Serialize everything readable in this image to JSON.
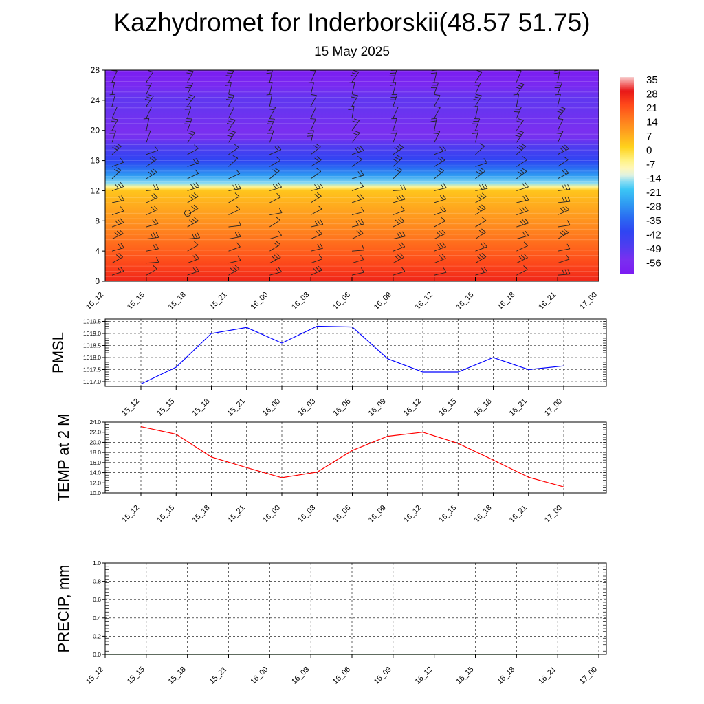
{
  "title": "Kazhydromet for Inderborskii(48.57 51.75)",
  "subtitle": "15 May 2025",
  "chart_data": [
    {
      "type": "heatmap",
      "description_of_axes": "height levels vs time",
      "xticks": [
        "15_12",
        "15_15",
        "15_18",
        "15_21",
        "16_00",
        "16_03",
        "16_06",
        "16_09",
        "16_12",
        "16_15",
        "16_18",
        "16_21",
        "17_00"
      ],
      "yticks": [
        0,
        4,
        8,
        12,
        16,
        20,
        24,
        28
      ],
      "ylim": [
        0,
        28
      ],
      "colorbar": {
        "labels": [
          "35",
          "28",
          "21",
          "14",
          "7",
          "0",
          "-7",
          "-14",
          "-21",
          "-28",
          "-35",
          "-42",
          "-49",
          "-56"
        ],
        "range": [
          -63,
          35
        ]
      },
      "temperature_profile": {
        "levels": [
          0,
          2,
          4,
          6,
          8,
          10,
          12,
          12.5,
          13,
          14,
          15,
          16,
          18,
          19,
          20,
          22,
          24,
          26,
          28
        ],
        "values": [
          26,
          22,
          18,
          14,
          10,
          6,
          2,
          -7,
          -17,
          -28,
          -35,
          -42,
          -50,
          -55,
          -56,
          -54,
          -52,
          -58,
          -63
        ]
      },
      "wind_barbs": "present at every grid point"
    },
    {
      "type": "line",
      "ylabel": "PMSL",
      "categories": [
        "15_12",
        "15_15",
        "15_18",
        "15_21",
        "16_00",
        "16_03",
        "16_06",
        "16_09",
        "16_12",
        "16_15",
        "16_18",
        "16_21",
        "17_00"
      ],
      "values": [
        1016.9,
        1017.6,
        1019.0,
        1019.25,
        1018.6,
        1019.3,
        1019.27,
        1017.95,
        1017.4,
        1017.4,
        1018.0,
        1017.5,
        1017.65
      ],
      "yticks": [
        "1017.0",
        "1017.5",
        "1018.0",
        "1018.5",
        "1019.0",
        "1019.5"
      ],
      "ylim": [
        1016.8,
        1019.6
      ],
      "color": "#0000ff",
      "grid": true
    },
    {
      "type": "line",
      "ylabel": "TEMP at 2 M",
      "categories": [
        "15_12",
        "15_15",
        "15_18",
        "15_21",
        "16_00",
        "16_03",
        "16_06",
        "16_09",
        "16_12",
        "16_15",
        "16_18",
        "16_21",
        "17_00"
      ],
      "values": [
        23.1,
        21.6,
        17.1,
        15.0,
        13.0,
        14.1,
        18.4,
        21.2,
        22.0,
        19.8,
        16.5,
        13.1,
        11.2
      ],
      "yticks": [
        "10.0",
        "12.0",
        "14.0",
        "16.0",
        "18.0",
        "20.0",
        "22.0",
        "24.0"
      ],
      "ylim": [
        10,
        24
      ],
      "color": "#ff0000",
      "grid": true
    },
    {
      "type": "line",
      "ylabel": "PRECIP, mm",
      "categories": [
        "15_12",
        "15_15",
        "15_18",
        "15_21",
        "16_00",
        "16_03",
        "16_06",
        "16_09",
        "16_12",
        "16_15",
        "16_18",
        "16_21",
        "17_00"
      ],
      "values": [
        0,
        0,
        0,
        0,
        0,
        0,
        0,
        0,
        0,
        0,
        0,
        0,
        0
      ],
      "yticks": [
        "0.0",
        "0.2",
        "0.4",
        "0.6",
        "0.8",
        "1.0"
      ],
      "ylim": [
        0,
        1
      ],
      "color": "#006400",
      "grid": true
    }
  ]
}
